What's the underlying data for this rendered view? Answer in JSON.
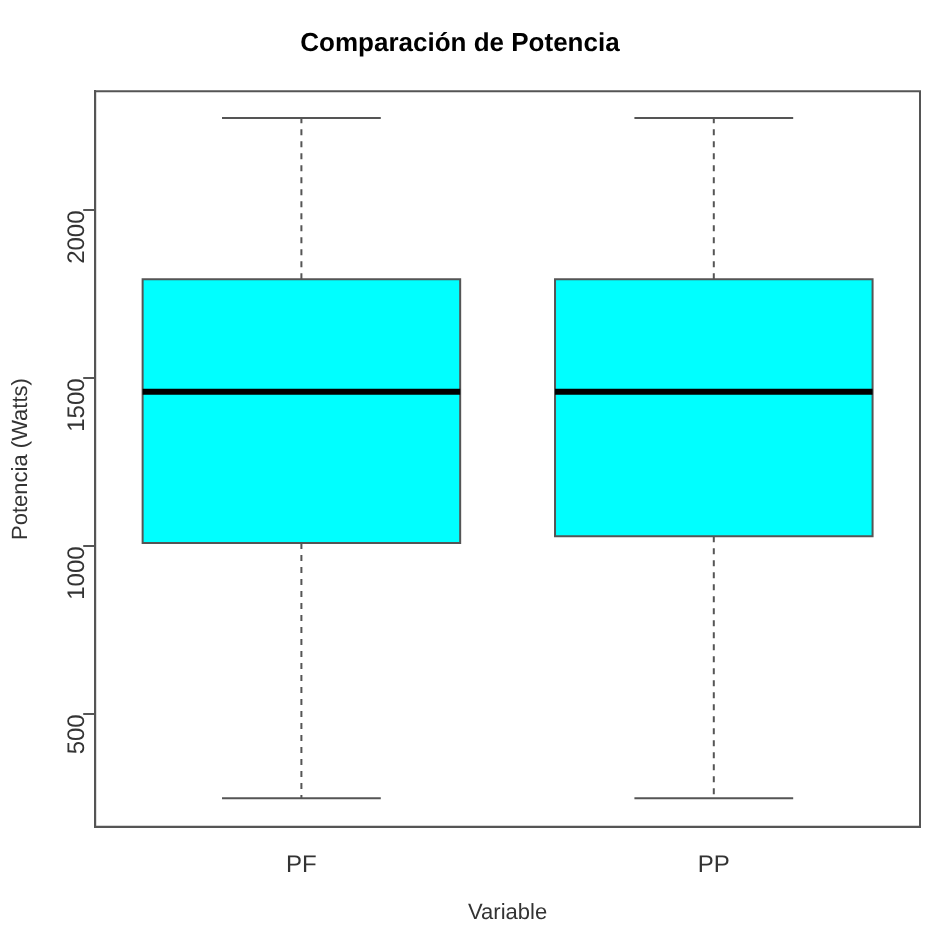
{
  "chart_data": {
    "type": "box",
    "title": "Comparación de Potencia",
    "xlabel": "Variable",
    "ylabel": "Potencia (Watts)",
    "categories": [
      "PF",
      "PP"
    ],
    "color": "#00ffff",
    "boxes": [
      {
        "low": 250,
        "q1": 1010,
        "median": 1460,
        "q3": 1795,
        "high": 2275
      },
      {
        "low": 250,
        "q1": 1030,
        "median": 1460,
        "q3": 1795,
        "high": 2275
      }
    ],
    "ylim": [
      165,
      2355
    ],
    "yticks": [
      500,
      1000,
      1500,
      2000
    ]
  }
}
